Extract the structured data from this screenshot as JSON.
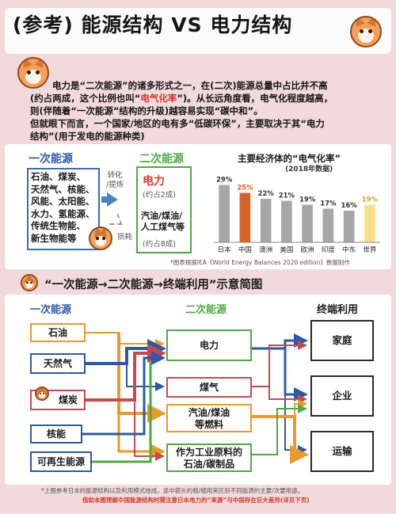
{
  "header": {
    "title": "(参考) 能源结构 VS 电力结构"
  },
  "intro": {
    "line1": "电力是“二次能源”的诸多形式之一，在(二次)能源总量中占比并不高",
    "line2_a": "(约占两成，这个比例也叫“",
    "line2_hl": "电气化率",
    "line2_b": "”)。从长远角度看，电气化程度越高，",
    "line3": "则(伴随着“一次能源”结构的升级)越容易实现“碳中和”。",
    "line4": "但就眼下而言，一个国家/地区的电有多“低碳环保”，主要取决于其“电力",
    "line5": "结构”(用于发电的能源种类)"
  },
  "structure": {
    "primary_heading": "一次能源",
    "primary_items": [
      "石油、煤炭、",
      "天然气、核能、",
      "风能、太阳能、",
      "水力、氢能源、",
      "传统生物能、",
      "新生物能等"
    ],
    "convert_label": "转化",
    "convert_label2": "/提炼",
    "loss_label": "损耗",
    "secondary_heading": "二次能源",
    "electricity_label": "电力",
    "electricity_share": "(约占2成)",
    "fuel_label_1": "汽油/煤油/",
    "fuel_label_2": "人工煤气等",
    "fuel_share": "(约占8成)"
  },
  "chart_data": {
    "type": "bar",
    "title": "主要经济体的“电气化率”",
    "subtitle": "(2018年数据)",
    "categories": [
      "日本",
      "中国",
      "澳洲",
      "美国",
      "欧洲",
      "印度",
      "中东",
      "世界"
    ],
    "values": [
      29,
      25,
      22,
      21,
      19,
      17,
      16,
      19
    ],
    "value_labels": [
      "29%",
      "25%",
      "22%",
      "21%",
      "19%",
      "17%",
      "16%",
      "19%"
    ],
    "ylim": [
      0,
      32
    ],
    "colors": {
      "default": "#a7a7a7",
      "china": "#d8632a",
      "world": "#f6e08a"
    },
    "note": "*图表根据IEA《World Energy Balances 2020 edition》数据制作"
  },
  "flow": {
    "title": "“一次能源→二次能源→终端利用”示意简图",
    "primary_heading": "一次能源",
    "secondary_heading": "二次能源",
    "final_heading": "终端利用",
    "sources": [
      "石油",
      "天然气",
      "煤炭",
      "核能",
      "可再生能源"
    ],
    "secondary": [
      "电力",
      "煤气",
      "汽油/煤油",
      "等燃料",
      "作为工业原料的",
      "石油/碳制品"
    ],
    "finals": [
      "家庭",
      "企业",
      "运输"
    ],
    "colors": {
      "oil": "#e89a2c",
      "gas": "#2b5aa6",
      "coal": "#c7494d",
      "nuclear": "#2b5aa6",
      "renewable": "#2b5aa6",
      "green": "#4daa42",
      "electric": "#2b5aa6"
    }
  },
  "footer": {
    "note": "*上图参考日本的能源结构以及利用模式绘成，途中箭头的粗/细用来区别不同能源的主要/次要用途。",
    "note_red": "借助本图理解中国能源结构时需注意日本电力的“来源”与中国存在巨大差异(详见下页)"
  }
}
